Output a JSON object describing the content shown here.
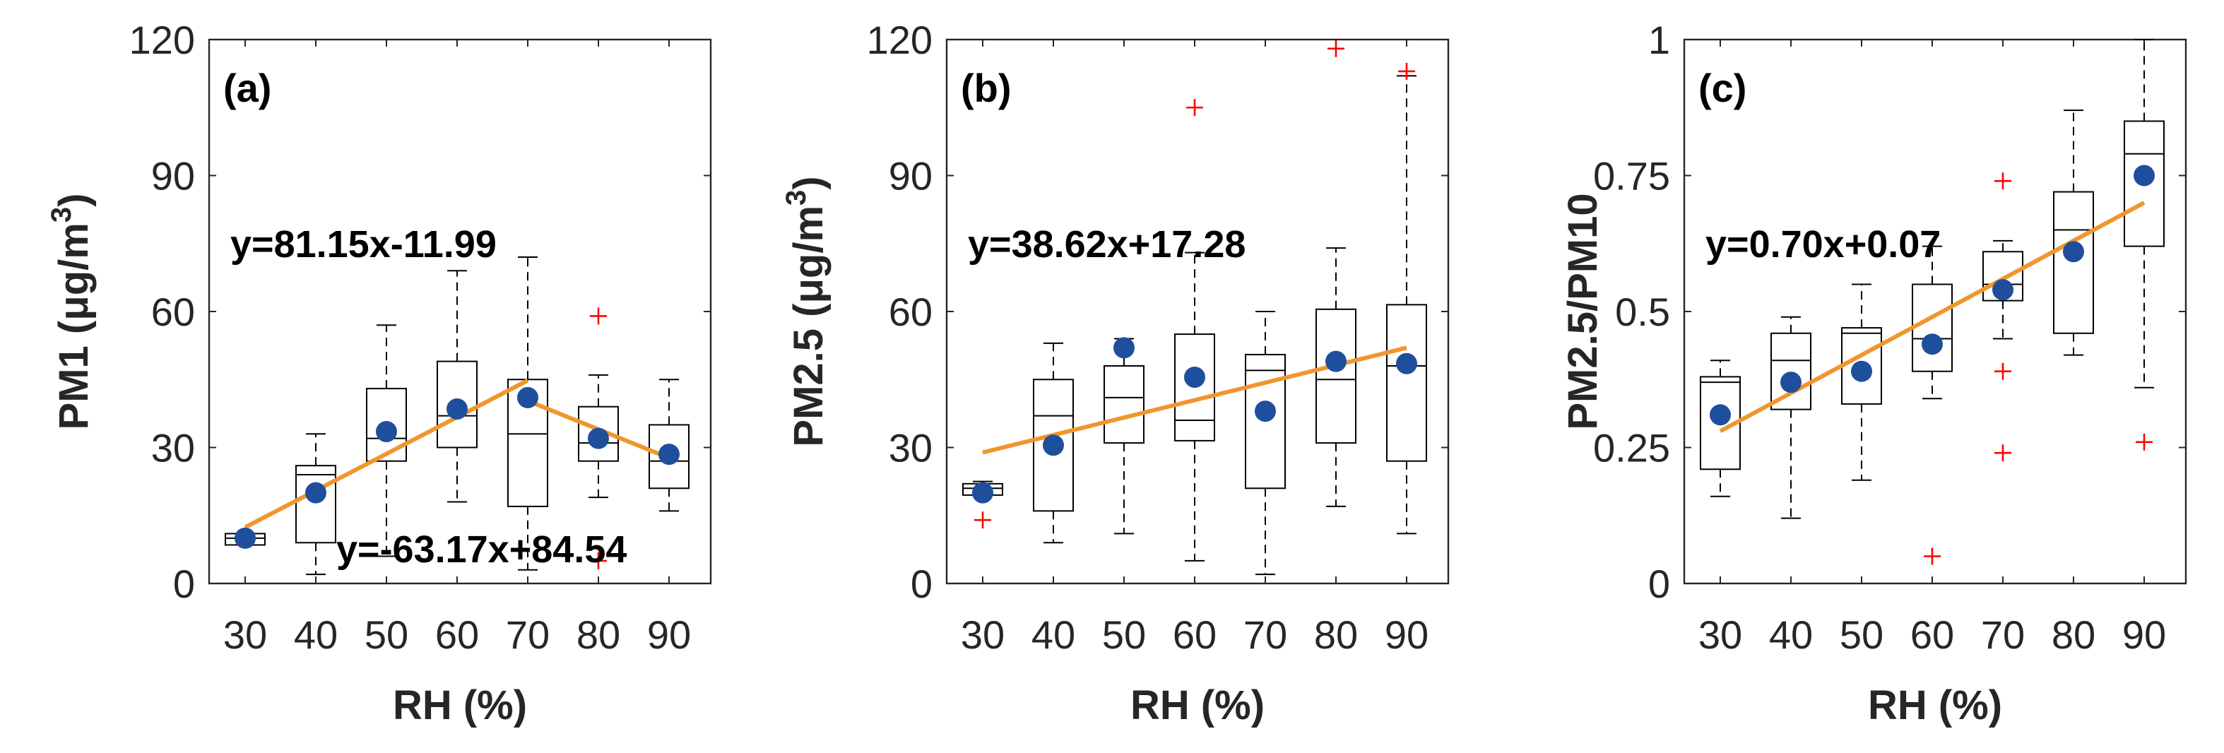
{
  "colors": {
    "box": "#000000",
    "mean": "#1f4e9c",
    "fit": "#f0962e",
    "outlier": "#ff0000",
    "axis": "#262626"
  },
  "chart_data": [
    {
      "type": "box",
      "panel_label": "(a)",
      "xlabel": "RH (%)",
      "ylabel": "PM1 (μg/m",
      "ylabel_sup": "3",
      "ylabel_close": ")",
      "categories": [
        "30",
        "40",
        "50",
        "60",
        "70",
        "80",
        "90"
      ],
      "ylim": [
        0,
        120
      ],
      "yticks": [
        "0",
        "30",
        "60",
        "90",
        "120"
      ],
      "boxes": [
        {
          "x": 30,
          "min": 8.5,
          "q1": 8.5,
          "median": 10,
          "q3": 11,
          "max": 11
        },
        {
          "x": 40,
          "min": 2,
          "q1": 9,
          "median": 24,
          "q3": 26,
          "max": 33
        },
        {
          "x": 50,
          "min": 6,
          "q1": 27,
          "median": 32,
          "q3": 43,
          "max": 57
        },
        {
          "x": 60,
          "min": 18,
          "q1": 30,
          "median": 37,
          "q3": 49,
          "max": 69
        },
        {
          "x": 70,
          "min": 3,
          "q1": 17,
          "median": 33,
          "q3": 45,
          "max": 72
        },
        {
          "x": 80,
          "min": 19,
          "q1": 27,
          "median": 31,
          "q3": 39,
          "max": 46
        },
        {
          "x": 90,
          "min": 16,
          "q1": 21,
          "median": 27,
          "q3": 35,
          "max": 45
        }
      ],
      "means": [
        10,
        20,
        33.5,
        38.5,
        41,
        32,
        28.5
      ],
      "outliers": [
        {
          "x": 80,
          "y": 59
        },
        {
          "x": 80,
          "y": 5
        }
      ],
      "fits": [
        {
          "equation": "y=81.15x-11.99",
          "from": [
            30,
            12.4
          ],
          "to": [
            70,
            44.8
          ]
        },
        {
          "equation": "y=-63.17x+84.54",
          "from": [
            70,
            40.3
          ],
          "to": [
            90,
            27.7
          ]
        }
      ]
    },
    {
      "type": "box",
      "panel_label": "(b)",
      "xlabel": "RH (%)",
      "ylabel": "PM2.5 (μg/m",
      "ylabel_sup": "3",
      "ylabel_close": ")",
      "categories": [
        "30",
        "40",
        "50",
        "60",
        "70",
        "80",
        "90"
      ],
      "ylim": [
        0,
        120
      ],
      "yticks": [
        "0",
        "30",
        "60",
        "90",
        "120"
      ],
      "boxes": [
        {
          "x": 30,
          "min": 19.5,
          "q1": 19.5,
          "median": 21,
          "q3": 22,
          "max": 22.5
        },
        {
          "x": 40,
          "min": 9,
          "q1": 16,
          "median": 37,
          "q3": 45,
          "max": 53
        },
        {
          "x": 50,
          "min": 11,
          "q1": 31,
          "median": 41,
          "q3": 48,
          "max": 54
        },
        {
          "x": 60,
          "min": 5,
          "q1": 31.5,
          "median": 36,
          "q3": 55,
          "max": 73
        },
        {
          "x": 70,
          "min": 2,
          "q1": 21,
          "median": 47,
          "q3": 50.5,
          "max": 60
        },
        {
          "x": 80,
          "min": 17,
          "q1": 31,
          "median": 45,
          "q3": 60.5,
          "max": 74
        },
        {
          "x": 90,
          "min": 11,
          "q1": 27,
          "median": 48,
          "q3": 61.5,
          "max": 112
        }
      ],
      "means": [
        20,
        30.5,
        52,
        45.5,
        38,
        49,
        48.5
      ],
      "outliers": [
        {
          "x": 30,
          "y": 14
        },
        {
          "x": 60,
          "y": 105
        },
        {
          "x": 80,
          "y": 118
        },
        {
          "x": 90,
          "y": 113
        }
      ],
      "fits": [
        {
          "equation": "y=38.62x+17.28",
          "from": [
            30,
            28.9
          ],
          "to": [
            90,
            52.0
          ]
        }
      ]
    },
    {
      "type": "box",
      "panel_label": "(c)",
      "xlabel": "RH (%)",
      "ylabel": "PM2.5/PM10",
      "ylabel_sup": "",
      "ylabel_close": "",
      "categories": [
        "30",
        "40",
        "50",
        "60",
        "70",
        "80",
        "90"
      ],
      "ylim": [
        0,
        1
      ],
      "yticks": [
        "0",
        "0.25",
        "0.5",
        "0.75",
        "1"
      ],
      "boxes": [
        {
          "x": 30,
          "min": 0.16,
          "q1": 0.21,
          "median": 0.37,
          "q3": 0.38,
          "max": 0.41
        },
        {
          "x": 40,
          "min": 0.12,
          "q1": 0.32,
          "median": 0.41,
          "q3": 0.46,
          "max": 0.49
        },
        {
          "x": 50,
          "min": 0.19,
          "q1": 0.33,
          "median": 0.46,
          "q3": 0.47,
          "max": 0.55
        },
        {
          "x": 60,
          "min": 0.34,
          "q1": 0.39,
          "median": 0.45,
          "q3": 0.55,
          "max": 0.62
        },
        {
          "x": 70,
          "min": 0.45,
          "q1": 0.52,
          "median": 0.55,
          "q3": 0.61,
          "max": 0.63
        },
        {
          "x": 80,
          "min": 0.42,
          "q1": 0.46,
          "median": 0.65,
          "q3": 0.72,
          "max": 0.87
        },
        {
          "x": 90,
          "min": 0.36,
          "q1": 0.62,
          "median": 0.79,
          "q3": 0.85,
          "max": 1.0
        }
      ],
      "means": [
        0.31,
        0.37,
        0.39,
        0.44,
        0.54,
        0.61,
        0.75
      ],
      "outliers": [
        {
          "x": 60,
          "y": 0.05
        },
        {
          "x": 70,
          "y": 0.74
        },
        {
          "x": 70,
          "y": 0.39
        },
        {
          "x": 70,
          "y": 0.24
        },
        {
          "x": 90,
          "y": 0.26
        }
      ],
      "fits": [
        {
          "equation": "y=0.70x+0.07",
          "from": [
            30,
            0.28
          ],
          "to": [
            90,
            0.7
          ]
        }
      ]
    }
  ]
}
